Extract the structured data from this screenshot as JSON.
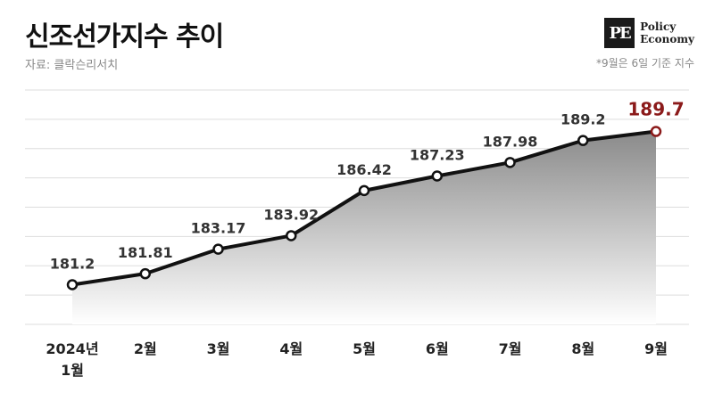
{
  "header": {
    "title": "신조선가지수 추이",
    "source": "자료: 클락슨리서치",
    "note": "*9월은 6일 기준 지수"
  },
  "logo": {
    "mark": "PE",
    "line1": "Policy",
    "line2": "Economy"
  },
  "colors": {
    "line": "#111111",
    "highlight": "#8b1a1a",
    "label": "#333333",
    "grid": "#dddddd"
  },
  "chart_data": {
    "type": "area",
    "title": "신조선가지수 추이",
    "categories": [
      [
        "2024년",
        "1월"
      ],
      [
        "2월"
      ],
      [
        "3월"
      ],
      [
        "4월"
      ],
      [
        "5월"
      ],
      [
        "6월"
      ],
      [
        "7월"
      ],
      [
        "8월"
      ],
      [
        "9월"
      ]
    ],
    "series": [
      {
        "values": [
          181.2,
          181.81,
          183.17,
          183.92,
          186.42,
          187.23,
          187.98,
          189.2,
          189.7
        ],
        "labels": [
          "181.2",
          "181.81",
          "183.17",
          "183.92",
          "186.42",
          "187.23",
          "187.98",
          "189.2",
          "189.7"
        ]
      }
    ],
    "ylim": [
      179,
      192
    ],
    "grid": true,
    "highlight_last": true
  }
}
